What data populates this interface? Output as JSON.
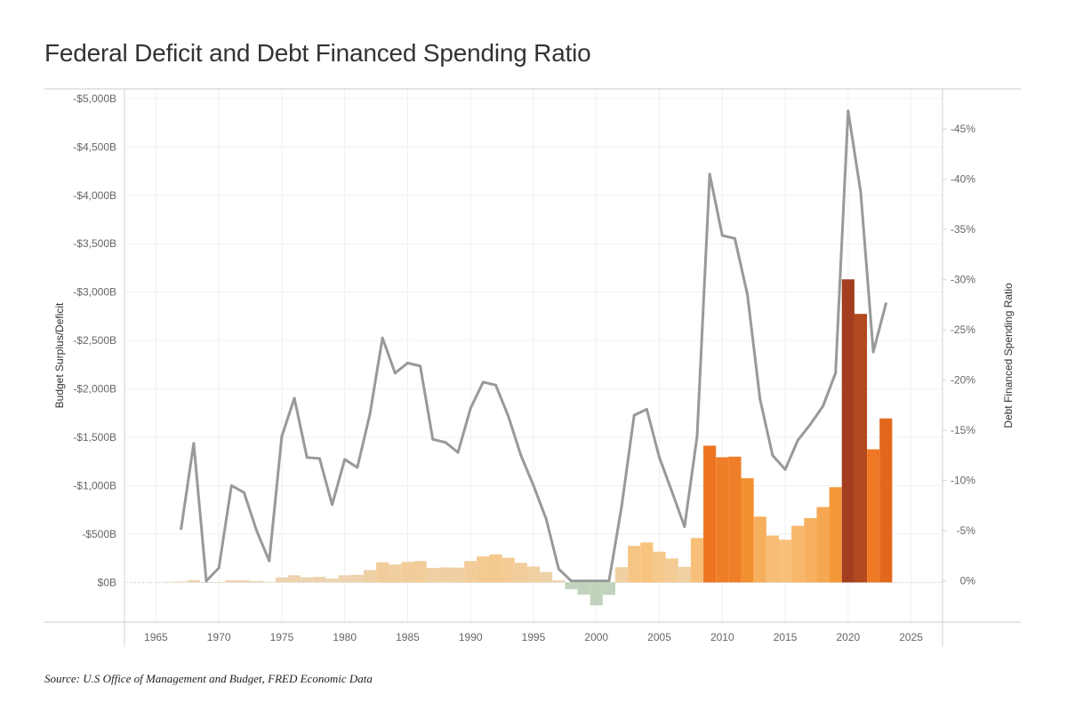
{
  "page": {
    "title": "Federal Deficit and Debt Financed Spending Ratio",
    "source": "Source: U.S Office of Management and Budget, FRED Economic Data"
  },
  "chart_data": {
    "type": "bar",
    "title": "Federal Deficit and Debt Financed Spending Ratio",
    "xlabel": "",
    "ylabel": "Budget Surplus/Deficit",
    "y2label": "Debt Financed Spending Ratio",
    "xlim": [
      1962.5,
      2027.5
    ],
    "ylim": [
      -410,
      5100
    ],
    "y2lim": [
      -4.1,
      49.0
    ],
    "x_ticks": [
      1965,
      1970,
      1975,
      1980,
      1985,
      1990,
      1995,
      2000,
      2005,
      2010,
      2015,
      2020,
      2025
    ],
    "y_ticks": [
      {
        "value": 0,
        "label": "$0B"
      },
      {
        "value": 500,
        "label": "-$500B"
      },
      {
        "value": 1000,
        "label": "-$1,000B"
      },
      {
        "value": 1500,
        "label": "-$1,500B"
      },
      {
        "value": 2000,
        "label": "-$2,000B"
      },
      {
        "value": 2500,
        "label": "-$2,500B"
      },
      {
        "value": 3000,
        "label": "-$3,000B"
      },
      {
        "value": 3500,
        "label": "-$3,500B"
      },
      {
        "value": 4000,
        "label": "-$4,000B"
      },
      {
        "value": 4500,
        "label": "-$4,500B"
      },
      {
        "value": 5000,
        "label": "-$5,000B"
      }
    ],
    "y2_ticks": [
      {
        "value": 0,
        "label": "0%"
      },
      {
        "value": 5,
        "label": "-5%"
      },
      {
        "value": 10,
        "label": "-10%"
      },
      {
        "value": 15,
        "label": "-15%"
      },
      {
        "value": 20,
        "label": "-20%"
      },
      {
        "value": 25,
        "label": "-25%"
      },
      {
        "value": 30,
        "label": "-30%"
      },
      {
        "value": 35,
        "label": "-35%"
      },
      {
        "value": 40,
        "label": "-40%"
      },
      {
        "value": 45,
        "label": "-45%"
      }
    ],
    "bar_series": {
      "name": "Budget Surplus/Deficit (deficit positive, $B)",
      "x": [
        1966,
        1967,
        1968,
        1969,
        1970,
        1971,
        1972,
        1973,
        1974,
        1975,
        1976,
        1977,
        1978,
        1979,
        1980,
        1981,
        1982,
        1983,
        1984,
        1985,
        1986,
        1987,
        1988,
        1989,
        1990,
        1991,
        1992,
        1993,
        1994,
        1995,
        1996,
        1997,
        1998,
        1999,
        2000,
        2001,
        2002,
        2003,
        2004,
        2005,
        2006,
        2007,
        2008,
        2009,
        2010,
        2011,
        2012,
        2013,
        2014,
        2015,
        2016,
        2017,
        2018,
        2019,
        2020,
        2021,
        2022,
        2023
      ],
      "values": [
        4,
        9,
        25,
        -3,
        3,
        23,
        23,
        15,
        6,
        53,
        74,
        54,
        59,
        41,
        74,
        79,
        128,
        208,
        185,
        212,
        221,
        150,
        155,
        153,
        221,
        269,
        290,
        255,
        203,
        164,
        107,
        22,
        -69,
        -126,
        -236,
        -128,
        158,
        378,
        413,
        318,
        248,
        161,
        459,
        1413,
        1294,
        1300,
        1077,
        680,
        485,
        442,
        585,
        665,
        779,
        984,
        3132,
        2775,
        1376,
        1695
      ]
    },
    "line_series": {
      "name": "Debt Financed Spending Ratio (%)",
      "x": [
        1967,
        1968,
        1969,
        1970,
        1971,
        1972,
        1973,
        1974,
        1975,
        1976,
        1977,
        1978,
        1979,
        1980,
        1981,
        1982,
        1983,
        1984,
        1985,
        1986,
        1987,
        1988,
        1989,
        1990,
        1991,
        1992,
        1993,
        1994,
        1995,
        1996,
        1997,
        1998,
        1999,
        2000,
        2001,
        2002,
        2003,
        2004,
        2005,
        2006,
        2007,
        2008,
        2009,
        2010,
        2011,
        2012,
        2013,
        2014,
        2015,
        2016,
        2017,
        2018,
        2019,
        2020,
        2021,
        2022,
        2023
      ],
      "values": [
        5.2,
        13.7,
        0.0,
        1.3,
        9.5,
        8.8,
        5.0,
        2.0,
        14.4,
        18.2,
        12.3,
        12.2,
        7.6,
        12.1,
        11.3,
        16.6,
        24.2,
        20.7,
        21.7,
        21.4,
        14.1,
        13.8,
        12.8,
        17.2,
        19.8,
        19.5,
        16.4,
        12.5,
        9.5,
        6.2,
        1.2,
        0.0,
        0.0,
        0.0,
        0.0,
        7.4,
        16.5,
        17.1,
        12.3,
        8.9,
        5.4,
        14.4,
        40.5,
        34.4,
        34.1,
        28.5,
        18.1,
        12.5,
        11.1,
        14.0,
        15.6,
        17.4,
        20.7,
        46.8,
        38.7,
        22.8,
        27.6
      ]
    },
    "legend": "none",
    "grid": true
  }
}
